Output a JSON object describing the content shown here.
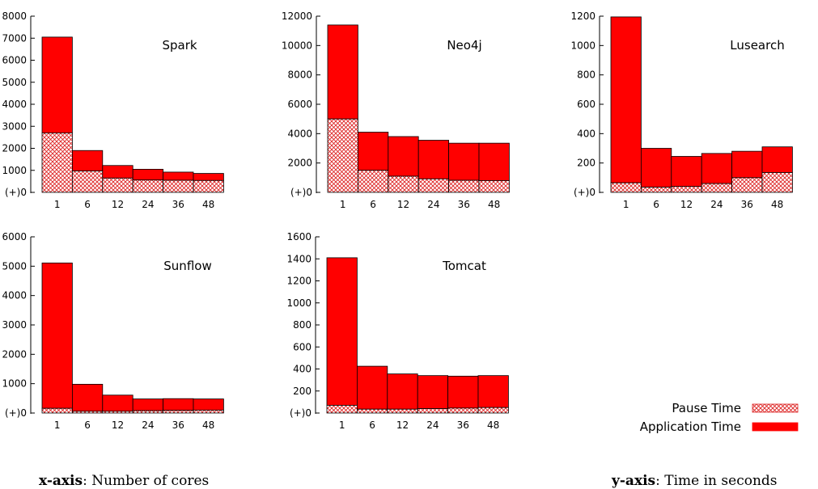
{
  "chart_data": [
    {
      "type": "bar",
      "stacked": true,
      "title": "Spark",
      "categories": [
        "1",
        "6",
        "12",
        "24",
        "36",
        "48"
      ],
      "series": [
        {
          "name": "Pause Time",
          "values": [
            2700,
            970,
            650,
            560,
            550,
            540
          ]
        },
        {
          "name": "Application Time",
          "values": [
            4350,
            930,
            570,
            490,
            370,
            320
          ]
        }
      ],
      "ylim": [
        0,
        8000
      ],
      "yticks": [
        "(+)0",
        "1000",
        "2000",
        "3000",
        "4000",
        "5000",
        "6000",
        "7000",
        "8000"
      ]
    },
    {
      "type": "bar",
      "stacked": true,
      "title": "Neo4j",
      "categories": [
        "1",
        "6",
        "12",
        "24",
        "36",
        "48"
      ],
      "series": [
        {
          "name": "Pause Time",
          "values": [
            5000,
            1500,
            1100,
            920,
            820,
            800
          ]
        },
        {
          "name": "Application Time",
          "values": [
            6400,
            2600,
            2700,
            2630,
            2530,
            2550
          ]
        }
      ],
      "ylim": [
        0,
        12000
      ],
      "yticks": [
        "(+)0",
        "2000",
        "4000",
        "6000",
        "8000",
        "10000",
        "12000"
      ]
    },
    {
      "type": "bar",
      "stacked": true,
      "title": "Lusearch",
      "categories": [
        "1",
        "6",
        "12",
        "24",
        "36",
        "48"
      ],
      "series": [
        {
          "name": "Pause Time",
          "values": [
            65,
            35,
            40,
            60,
            100,
            135
          ]
        },
        {
          "name": "Application Time",
          "values": [
            1130,
            265,
            205,
            205,
            180,
            175
          ]
        }
      ],
      "ylim": [
        0,
        1200
      ],
      "yticks": [
        "(+)0",
        "200",
        "400",
        "600",
        "800",
        "1000",
        "1200"
      ]
    },
    {
      "type": "bar",
      "stacked": true,
      "title": "Sunflow",
      "categories": [
        "1",
        "6",
        "12",
        "24",
        "36",
        "48"
      ],
      "series": [
        {
          "name": "Pause Time",
          "values": [
            160,
            60,
            60,
            80,
            90,
            100
          ]
        },
        {
          "name": "Application Time",
          "values": [
            4950,
            920,
            550,
            400,
            400,
            380
          ]
        }
      ],
      "ylim": [
        0,
        6000
      ],
      "yticks": [
        "(+)0",
        "1000",
        "2000",
        "3000",
        "4000",
        "5000",
        "6000"
      ]
    },
    {
      "type": "bar",
      "stacked": true,
      "title": "Tomcat",
      "categories": [
        "1",
        "6",
        "12",
        "24",
        "36",
        "48"
      ],
      "series": [
        {
          "name": "Pause Time",
          "values": [
            70,
            35,
            35,
            40,
            45,
            50
          ]
        },
        {
          "name": "Application Time",
          "values": [
            1340,
            390,
            320,
            300,
            290,
            290
          ]
        }
      ],
      "ylim": [
        0,
        1600
      ],
      "yticks": [
        "(+)0",
        "200",
        "400",
        "600",
        "800",
        "1000",
        "1200",
        "1400",
        "1600"
      ]
    }
  ],
  "legend": {
    "items": [
      {
        "label": "Pause Time",
        "pattern": "crosshatch"
      },
      {
        "label": "Application Time",
        "pattern": "solid"
      }
    ]
  },
  "colors": {
    "bar_fill": "#ff0000",
    "hatch": "#dd2222",
    "outline": "#000000"
  },
  "captions": {
    "x_bold": "x-axis",
    "x_rest": ": Number of cores",
    "y_bold": "y-axis",
    "y_rest": ": Time in seconds"
  }
}
